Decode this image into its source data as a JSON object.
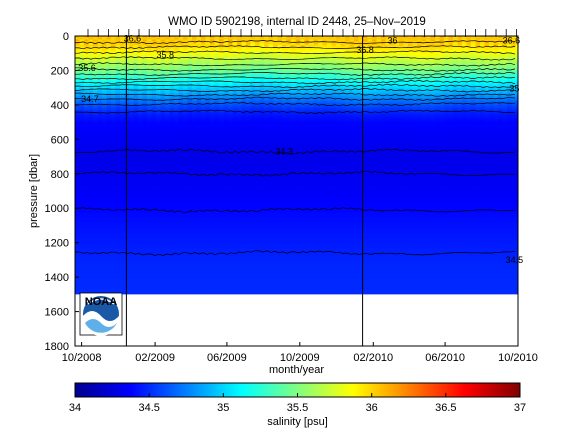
{
  "chart_data": {
    "type": "heatmap",
    "title": "WMO ID 5902198, internal ID 2448, 25–Nov–2019",
    "xlabel": "month/year",
    "ylabel": "pressure [dbar]",
    "colorbar_label": "salinity [psu]",
    "x_ticks": [
      "10/2008",
      "02/2009",
      "06/2009",
      "10/2009",
      "02/2010",
      "06/2010",
      "10/2010"
    ],
    "x_range": [
      "2008-09-20",
      "2010-10-01"
    ],
    "y_ticks": [
      0,
      200,
      400,
      600,
      800,
      1000,
      1200,
      1400,
      1600,
      1800
    ],
    "y_range": [
      0,
      1800
    ],
    "y_reversed": true,
    "data_max_pressure": 1500,
    "colorbar_range": [
      34,
      37
    ],
    "colorbar_ticks": [
      "34",
      "34.5",
      "35",
      "35.5",
      "36",
      "36.5",
      "37"
    ],
    "colormap": [
      "#00008f",
      "#0000ff",
      "#0080ff",
      "#00ffff",
      "#80ff80",
      "#ffff00",
      "#ff8000",
      "#ff0000",
      "#800000"
    ],
    "vertical_lines": [
      "2008-12-15",
      "2010-01-14"
    ],
    "salinity_profile": [
      {
        "pressure": 0,
        "salinity": 36.05
      },
      {
        "pressure": 50,
        "salinity": 36.0
      },
      {
        "pressure": 100,
        "salinity": 35.85
      },
      {
        "pressure": 150,
        "salinity": 35.65
      },
      {
        "pressure": 200,
        "salinity": 35.45
      },
      {
        "pressure": 250,
        "salinity": 35.2
      },
      {
        "pressure": 300,
        "salinity": 35.0
      },
      {
        "pressure": 350,
        "salinity": 34.8
      },
      {
        "pressure": 400,
        "salinity": 34.6
      },
      {
        "pressure": 450,
        "salinity": 34.45
      },
      {
        "pressure": 500,
        "salinity": 34.38
      },
      {
        "pressure": 700,
        "salinity": 34.3
      },
      {
        "pressure": 900,
        "salinity": 34.35
      },
      {
        "pressure": 1100,
        "salinity": 34.42
      },
      {
        "pressure": 1300,
        "salinity": 34.48
      },
      {
        "pressure": 1500,
        "salinity": 34.5
      }
    ],
    "contour_lines": [
      {
        "pressure": 35,
        "salinity": 36.0
      },
      {
        "pressure": 65,
        "salinity": 35.9
      },
      {
        "pressure": 95,
        "salinity": 35.8
      },
      {
        "pressure": 130,
        "salinity": 35.7
      },
      {
        "pressure": 165,
        "salinity": 35.6
      },
      {
        "pressure": 195,
        "salinity": 35.5
      },
      {
        "pressure": 220,
        "salinity": 35.4
      },
      {
        "pressure": 245,
        "salinity": 35.3
      },
      {
        "pressure": 268,
        "salinity": 35.2
      },
      {
        "pressure": 290,
        "salinity": 35.1
      },
      {
        "pressure": 315,
        "salinity": 35.0
      },
      {
        "pressure": 340,
        "salinity": 34.9
      },
      {
        "pressure": 365,
        "salinity": 34.8
      },
      {
        "pressure": 395,
        "salinity": 34.7
      },
      {
        "pressure": 440,
        "salinity": 34.6
      },
      {
        "pressure": 670,
        "salinity": 34.3
      },
      {
        "pressure": 800,
        "salinity": 34.35
      },
      {
        "pressure": 1010,
        "salinity": 34.4
      },
      {
        "pressure": 1260,
        "salinity": 34.5
      }
    ],
    "contour_labels": [
      {
        "text": "36.6",
        "date": "2008-12-25",
        "pressure": 15
      },
      {
        "text": "35.8",
        "date": "2009-02-18",
        "pressure": 110
      },
      {
        "text": "35.6",
        "date": "2008-10-10",
        "pressure": 185
      },
      {
        "text": "34.7",
        "date": "2008-10-15",
        "pressure": 365
      },
      {
        "text": "36.8",
        "date": "2010-01-18",
        "pressure": 80
      },
      {
        "text": "36",
        "date": "2010-03-05",
        "pressure": 25
      },
      {
        "text": "36.6",
        "date": "2010-09-20",
        "pressure": 25
      },
      {
        "text": "35",
        "date": "2010-09-25",
        "pressure": 305
      },
      {
        "text": "34.3",
        "date": "2009-09-05",
        "pressure": 670
      },
      {
        "text": "34.5",
        "date": "2010-09-25",
        "pressure": 1300
      }
    ],
    "logo_text": "NOAA"
  }
}
